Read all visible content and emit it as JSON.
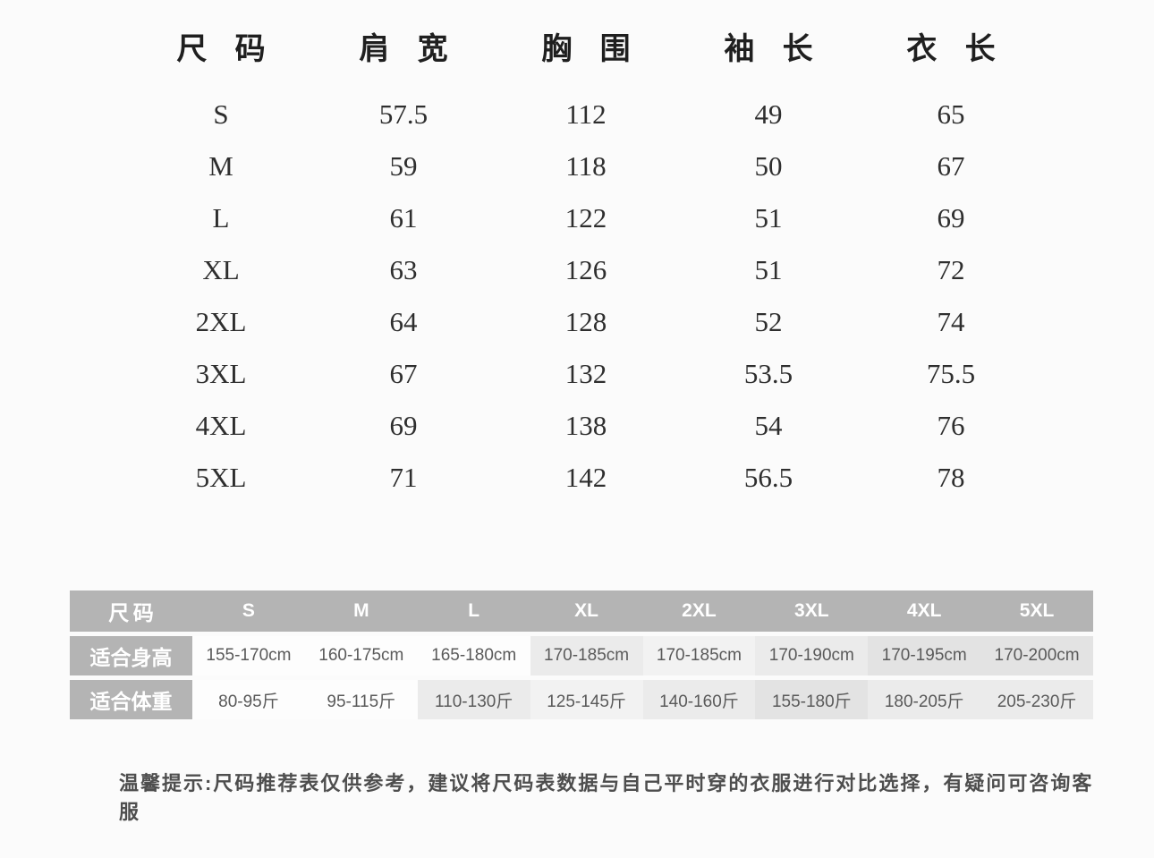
{
  "size_table": {
    "headers": [
      "尺 码",
      "肩 宽",
      "胸 围",
      "袖 长",
      "衣 长"
    ],
    "rows": [
      [
        "S",
        "57.5",
        "112",
        "49",
        "65"
      ],
      [
        "M",
        "59",
        "118",
        "50",
        "67"
      ],
      [
        "L",
        "61",
        "122",
        "51",
        "69"
      ],
      [
        "XL",
        "63",
        "126",
        "51",
        "72"
      ],
      [
        "2XL",
        "64",
        "128",
        "52",
        "74"
      ],
      [
        "3XL",
        "67",
        "132",
        "53.5",
        "75.5"
      ],
      [
        "4XL",
        "69",
        "138",
        "54",
        "76"
      ],
      [
        "5XL",
        "71",
        "142",
        "56.5",
        "78"
      ]
    ]
  },
  "fit_table": {
    "header": [
      "尺码",
      "S",
      "M",
      "L",
      "XL",
      "2XL",
      "3XL",
      "4XL",
      "5XL"
    ],
    "height_row": {
      "label": "适合身高",
      "values": [
        "155-170cm",
        "160-175cm",
        "165-180cm",
        "170-185cm",
        "170-185cm",
        "170-190cm",
        "170-195cm",
        "170-200cm"
      ]
    },
    "weight_row": {
      "label": "适合体重",
      "values": [
        "80-95斤",
        "95-115斤",
        "110-130斤",
        "125-145斤",
        "140-160斤",
        "155-180斤",
        "180-205斤",
        "205-230斤"
      ]
    }
  },
  "note": "温馨提示:尺码推荐表仅供参考，建议将尺码表数据与自己平时穿的衣服进行对比选择，有疑问可咨询客服",
  "colors": {
    "header_gray": "#b4b4b4",
    "cell_white": "#fdfdfd",
    "cell_light_gray": "#ebebeb",
    "cell_dark_gray": "#e3e3e3",
    "text_dark": "#2e2e2e",
    "note_text": "#4e4e4e"
  }
}
